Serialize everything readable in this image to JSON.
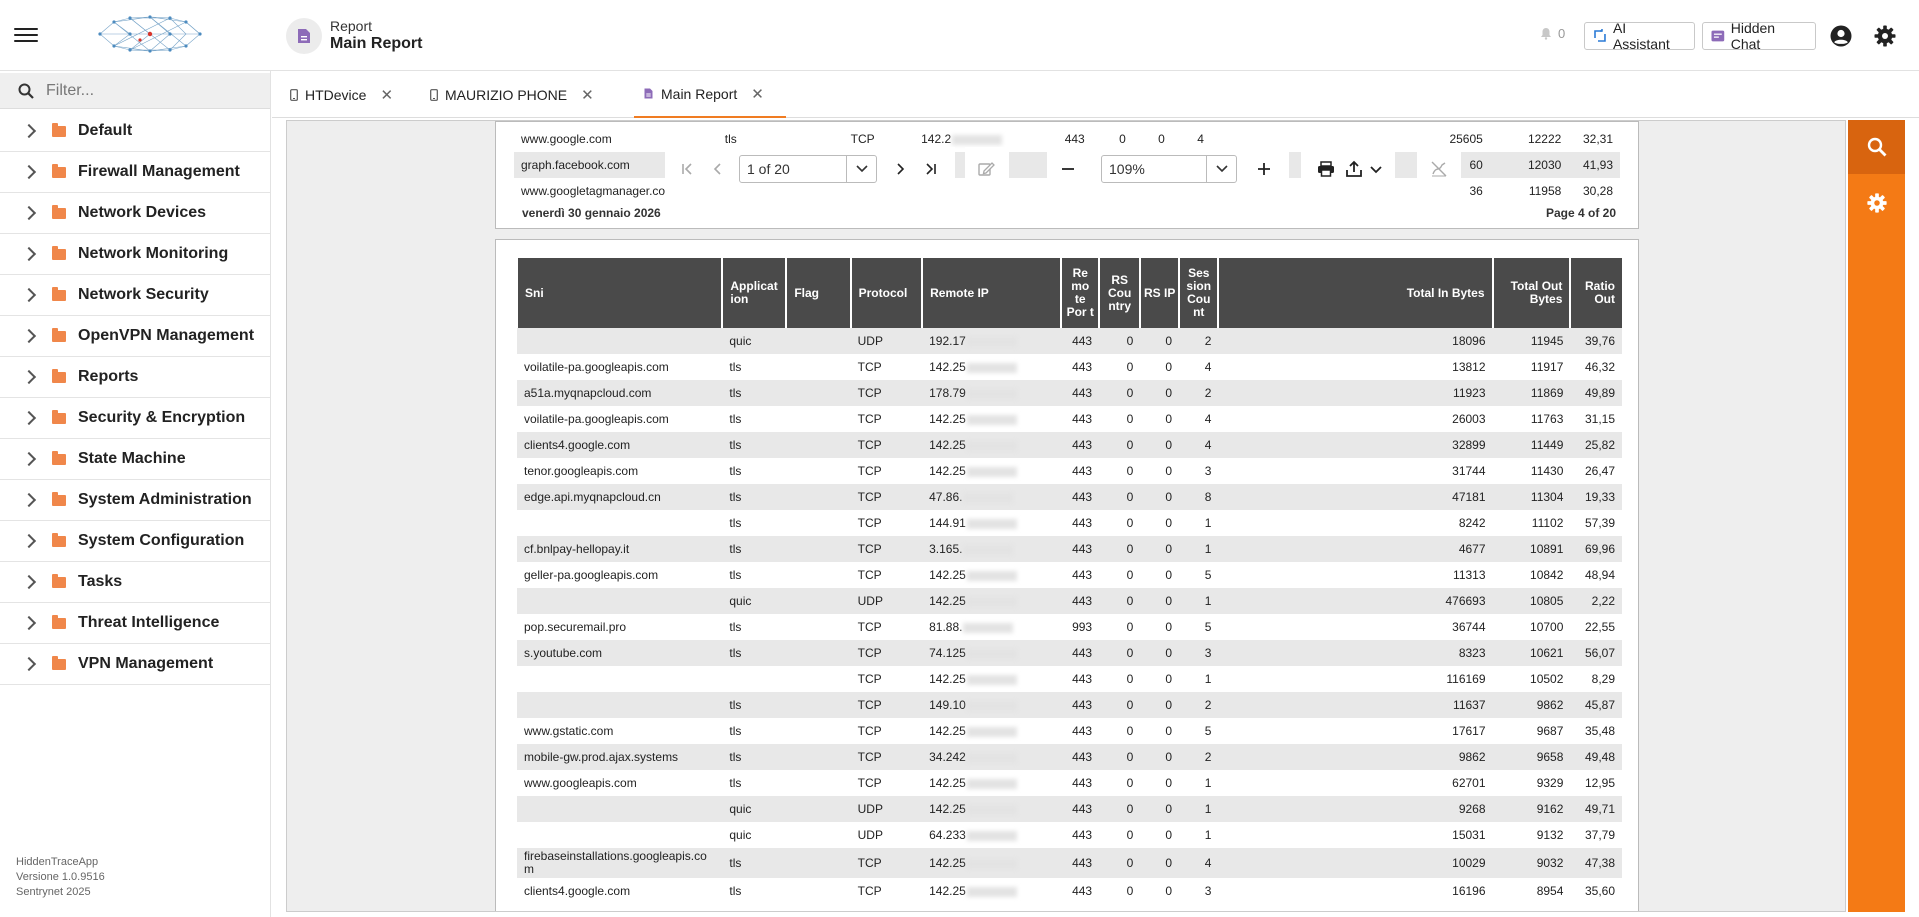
{
  "header": {
    "crumb_parent": "Report",
    "crumb_title": "Main Report",
    "notification_count": "0",
    "ai_assistant_label": "AI Assistant",
    "hidden_chat_label": "Hidden Chat"
  },
  "sidebar": {
    "filter_placeholder": "Filter...",
    "items": [
      "Default",
      "Firewall Management",
      "Network Devices",
      "Network Monitoring",
      "Network Security",
      "OpenVPN Management",
      "Reports",
      "Security & Encryption",
      "State Machine",
      "System Administration",
      "System Configuration",
      "Tasks",
      "Threat Intelligence",
      "VPN Management"
    ],
    "version_lines": [
      "HiddenTraceApp",
      "Versione 1.0.9516",
      "Sentrynet 2025"
    ]
  },
  "tabs": [
    {
      "label": "HTDevice"
    },
    {
      "label": "MAURIZIO PHONE"
    },
    {
      "label": "Main Report"
    }
  ],
  "pdf_toolbar": {
    "page_indicator": "1 of 20",
    "zoom": "109%"
  },
  "page_prev": {
    "rows": [
      {
        "sni": "www.google.com",
        "app": "tls",
        "proto": "TCP",
        "ip": "142.2",
        "port": "443",
        "c1": "0",
        "c2": "0",
        "c3": "4",
        "inb": "25605",
        "outb": "12222",
        "ratio": "32,31"
      },
      {
        "sni": "graph.facebook.com",
        "app": "",
        "proto": "",
        "ip": "",
        "port": "",
        "c1": "",
        "c2": "",
        "c3": "",
        "inb": "60",
        "outb": "12030",
        "ratio": "41,93"
      },
      {
        "sni": "www.googletagmanager.co",
        "app": "",
        "proto": "",
        "ip": "",
        "port": "",
        "c1": "",
        "c2": "",
        "c3": "",
        "inb": "36",
        "outb": "11958",
        "ratio": "30,28"
      }
    ],
    "footer_date": "venerdì 30 gennaio 2026",
    "footer_page": "Page 4 of 20"
  },
  "report": {
    "columns": {
      "sni": "Sni",
      "application": "Applicat ion",
      "flag": "Flag",
      "protocol": "Protocol",
      "remote_ip": "Remote IP",
      "remote_port": "Re mo te Por t",
      "rs_country": "RS Cou ntry",
      "rs_ip": "RS IP",
      "session_count": "Ses sion Cou nt",
      "total_in": "Total In Bytes",
      "total_out": "Total Out Bytes",
      "ratio_out": "Ratio Out"
    },
    "rows": [
      {
        "sni": "",
        "app": "quic",
        "proto": "UDP",
        "ip": "192.17",
        "port": "443",
        "c1": "0",
        "c2": "0",
        "c3": "2",
        "inb": "18096",
        "outb": "11945",
        "ratio": "39,76"
      },
      {
        "sni": "voilatile-pa.googleapis.com",
        "app": "tls",
        "proto": "TCP",
        "ip": "142.25",
        "port": "443",
        "c1": "0",
        "c2": "0",
        "c3": "4",
        "inb": "13812",
        "outb": "11917",
        "ratio": "46,32"
      },
      {
        "sni": "a51a.myqnapcloud.com",
        "app": "tls",
        "proto": "TCP",
        "ip": "178.79",
        "port": "443",
        "c1": "0",
        "c2": "0",
        "c3": "2",
        "inb": "11923",
        "outb": "11869",
        "ratio": "49,89"
      },
      {
        "sni": "voilatile-pa.googleapis.com",
        "app": "tls",
        "proto": "TCP",
        "ip": "142.25",
        "port": "443",
        "c1": "0",
        "c2": "0",
        "c3": "4",
        "inb": "26003",
        "outb": "11763",
        "ratio": "31,15"
      },
      {
        "sni": "clients4.google.com",
        "app": "tls",
        "proto": "TCP",
        "ip": "142.25",
        "port": "443",
        "c1": "0",
        "c2": "0",
        "c3": "4",
        "inb": "32899",
        "outb": "11449",
        "ratio": "25,82"
      },
      {
        "sni": "tenor.googleapis.com",
        "app": "tls",
        "proto": "TCP",
        "ip": "142.25",
        "port": "443",
        "c1": "0",
        "c2": "0",
        "c3": "3",
        "inb": "31744",
        "outb": "11430",
        "ratio": "26,47"
      },
      {
        "sni": "edge.api.myqnapcloud.cn",
        "app": "tls",
        "proto": "TCP",
        "ip": "47.86.",
        "port": "443",
        "c1": "0",
        "c2": "0",
        "c3": "8",
        "inb": "47181",
        "outb": "11304",
        "ratio": "19,33"
      },
      {
        "sni": "",
        "app": "tls",
        "proto": "TCP",
        "ip": "144.91",
        "port": "443",
        "c1": "0",
        "c2": "0",
        "c3": "1",
        "inb": "8242",
        "outb": "11102",
        "ratio": "57,39"
      },
      {
        "sni": "cf.bnlpay-hellopay.it",
        "app": "tls",
        "proto": "TCP",
        "ip": "3.165.",
        "port": "443",
        "c1": "0",
        "c2": "0",
        "c3": "1",
        "inb": "4677",
        "outb": "10891",
        "ratio": "69,96"
      },
      {
        "sni": "geller-pa.googleapis.com",
        "app": "tls",
        "proto": "TCP",
        "ip": "142.25",
        "port": "443",
        "c1": "0",
        "c2": "0",
        "c3": "5",
        "inb": "11313",
        "outb": "10842",
        "ratio": "48,94"
      },
      {
        "sni": "",
        "app": "quic",
        "proto": "UDP",
        "ip": "142.25",
        "port": "443",
        "c1": "0",
        "c2": "0",
        "c3": "1",
        "inb": "476693",
        "outb": "10805",
        "ratio": "2,22"
      },
      {
        "sni": "pop.securemail.pro",
        "app": "tls",
        "proto": "TCP",
        "ip": "81.88.",
        "port": "993",
        "c1": "0",
        "c2": "0",
        "c3": "5",
        "inb": "36744",
        "outb": "10700",
        "ratio": "22,55"
      },
      {
        "sni": "s.youtube.com",
        "app": "tls",
        "proto": "TCP",
        "ip": "74.125",
        "port": "443",
        "c1": "0",
        "c2": "0",
        "c3": "3",
        "inb": "8323",
        "outb": "10621",
        "ratio": "56,07"
      },
      {
        "sni": "",
        "app": "",
        "proto": "TCP",
        "ip": "142.25",
        "port": "443",
        "c1": "0",
        "c2": "0",
        "c3": "1",
        "inb": "116169",
        "outb": "10502",
        "ratio": "8,29"
      },
      {
        "sni": "",
        "app": "tls",
        "proto": "TCP",
        "ip": "149.10",
        "port": "443",
        "c1": "0",
        "c2": "0",
        "c3": "2",
        "inb": "11637",
        "outb": "9862",
        "ratio": "45,87"
      },
      {
        "sni": "www.gstatic.com",
        "app": "tls",
        "proto": "TCP",
        "ip": "142.25",
        "port": "443",
        "c1": "0",
        "c2": "0",
        "c3": "5",
        "inb": "17617",
        "outb": "9687",
        "ratio": "35,48"
      },
      {
        "sni": "mobile-gw.prod.ajax.systems",
        "app": "tls",
        "proto": "TCP",
        "ip": "34.242",
        "port": "443",
        "c1": "0",
        "c2": "0",
        "c3": "2",
        "inb": "9862",
        "outb": "9658",
        "ratio": "49,48"
      },
      {
        "sni": "www.googleapis.com",
        "app": "tls",
        "proto": "TCP",
        "ip": "142.25",
        "port": "443",
        "c1": "0",
        "c2": "0",
        "c3": "1",
        "inb": "62701",
        "outb": "9329",
        "ratio": "12,95"
      },
      {
        "sni": "",
        "app": "quic",
        "proto": "UDP",
        "ip": "142.25",
        "port": "443",
        "c1": "0",
        "c2": "0",
        "c3": "1",
        "inb": "9268",
        "outb": "9162",
        "ratio": "49,71"
      },
      {
        "sni": "",
        "app": "quic",
        "proto": "UDP",
        "ip": "64.233",
        "port": "443",
        "c1": "0",
        "c2": "0",
        "c3": "1",
        "inb": "15031",
        "outb": "9132",
        "ratio": "37,79"
      },
      {
        "sni": "firebaseinstallations.googleapis.co m",
        "app": "tls",
        "proto": "TCP",
        "ip": "142.25",
        "port": "443",
        "c1": "0",
        "c2": "0",
        "c3": "4",
        "inb": "10029",
        "outb": "9032",
        "ratio": "47,38"
      },
      {
        "sni": "clients4.google.com",
        "app": "tls",
        "proto": "TCP",
        "ip": "142.25",
        "port": "443",
        "c1": "0",
        "c2": "0",
        "c3": "3",
        "inb": "16196",
        "outb": "8954",
        "ratio": "35,60"
      }
    ]
  },
  "colors": {
    "accent": "#f47a15",
    "accent_dark": "#d8640f",
    "table_header": "#4a4a4a",
    "row_alt": "#e8e8e8",
    "folder": "#f0874a"
  },
  "icons": {
    "menu": "hamburger-icon",
    "report": "document-icon",
    "bell": "bell-icon",
    "ai": "ai-assistant-icon",
    "chat": "chat-icon",
    "account": "account-icon",
    "settings": "gear-icon",
    "search": "search-icon"
  }
}
